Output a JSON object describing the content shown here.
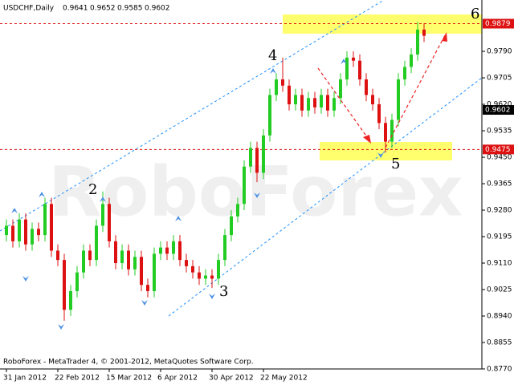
{
  "chart_data": {
    "type": "candlestick",
    "title": "USDCHF,Daily",
    "header_values": [
      0.9641,
      0.9652,
      0.9585,
      0.9602
    ],
    "footer": "RoboForex - MetaTrader 4, © 2001-2012, MetaQuotes Software Corp.",
    "watermark": "RoboForex",
    "annotations": [
      "2",
      "3",
      "4",
      "5",
      "6"
    ],
    "up_color": "#22cc22",
    "down_color": "#dd1111",
    "categories": [
      "31 Jan 2012",
      null,
      null,
      null,
      null,
      null,
      null,
      null,
      "22 Feb 2012",
      null,
      null,
      null,
      null,
      null,
      null,
      null,
      "15 Mar 2012",
      null,
      null,
      null,
      null,
      null,
      null,
      null,
      "6 Apr 2012",
      null,
      null,
      null,
      null,
      null,
      null,
      null,
      "30 Apr 2012",
      null,
      null,
      null,
      null,
      null,
      null,
      null,
      "22 May 2012",
      null,
      null,
      null,
      null,
      null,
      null,
      null,
      null,
      null,
      null,
      null,
      null,
      null,
      null,
      null,
      null,
      null,
      null,
      null,
      null,
      null,
      null,
      null,
      null,
      null
    ],
    "open": [
      0.92,
      0.923,
      0.918,
      0.925,
      0.917,
      0.922,
      0.92,
      0.93,
      0.915,
      0.912,
      0.896,
      0.902,
      0.908,
      0.915,
      0.912,
      0.923,
      0.93,
      0.918,
      0.911,
      0.915,
      0.909,
      0.913,
      0.904,
      0.902,
      0.914,
      0.916,
      0.914,
      0.918,
      0.912,
      0.91,
      0.908,
      0.906,
      0.907,
      0.906,
      0.912,
      0.92,
      0.926,
      0.93,
      0.942,
      0.948,
      0.94,
      0.952,
      0.965,
      0.97,
      0.968,
      0.962,
      0.965,
      0.96,
      0.964,
      0.961,
      0.965,
      0.96,
      0.964,
      0.97,
      0.977,
      0.976,
      0.97,
      0.965,
      0.962,
      0.956,
      0.95,
      0.957,
      0.97,
      0.974,
      0.978,
      0.986
    ],
    "high": [
      0.925,
      0.925,
      0.927,
      0.927,
      0.924,
      0.924,
      0.932,
      0.932,
      0.917,
      0.914,
      0.904,
      0.91,
      0.917,
      0.917,
      0.925,
      0.934,
      0.932,
      0.92,
      0.917,
      0.917,
      0.915,
      0.915,
      0.906,
      0.916,
      0.918,
      0.918,
      0.92,
      0.92,
      0.914,
      0.912,
      0.91,
      0.909,
      0.909,
      0.914,
      0.922,
      0.928,
      0.932,
      0.944,
      0.95,
      0.95,
      0.954,
      0.967,
      0.972,
      0.977,
      0.97,
      0.967,
      0.967,
      0.966,
      0.966,
      0.967,
      0.967,
      0.966,
      0.972,
      0.979,
      0.979,
      0.978,
      0.972,
      0.967,
      0.964,
      0.958,
      0.959,
      0.972,
      0.976,
      0.98,
      0.9885,
      0.988
    ],
    "low": [
      0.918,
      0.916,
      0.916,
      0.915,
      0.915,
      0.918,
      0.918,
      0.913,
      0.91,
      0.8925,
      0.894,
      0.9,
      0.906,
      0.91,
      0.91,
      0.921,
      0.916,
      0.909,
      0.909,
      0.907,
      0.907,
      0.902,
      0.9,
      0.9,
      0.912,
      0.912,
      0.912,
      0.91,
      0.908,
      0.906,
      0.904,
      0.904,
      0.903,
      0.904,
      0.91,
      0.918,
      0.924,
      0.928,
      0.94,
      0.937,
      0.938,
      0.95,
      0.963,
      0.966,
      0.96,
      0.96,
      0.958,
      0.958,
      0.959,
      0.959,
      0.958,
      0.958,
      0.962,
      0.968,
      0.974,
      0.968,
      0.963,
      0.96,
      0.954,
      0.9465,
      0.948,
      0.955,
      0.968,
      0.972,
      0.976,
      0.982
    ],
    "close": [
      0.923,
      0.918,
      0.925,
      0.917,
      0.922,
      0.92,
      0.93,
      0.915,
      0.912,
      0.896,
      0.902,
      0.908,
      0.915,
      0.912,
      0.923,
      0.93,
      0.918,
      0.911,
      0.915,
      0.909,
      0.913,
      0.904,
      0.902,
      0.914,
      0.916,
      0.914,
      0.918,
      0.912,
      0.91,
      0.908,
      0.906,
      0.907,
      0.906,
      0.912,
      0.92,
      0.926,
      0.93,
      0.942,
      0.948,
      0.94,
      0.952,
      0.965,
      0.97,
      0.968,
      0.962,
      0.965,
      0.96,
      0.964,
      0.961,
      0.965,
      0.96,
      0.964,
      0.97,
      0.977,
      0.976,
      0.97,
      0.965,
      0.962,
      0.956,
      0.95,
      0.957,
      0.97,
      0.974,
      0.978,
      0.986,
      0.984
    ],
    "ylim": [
      0.877,
      0.9955
    ],
    "yticks": [
      {
        "value": 0.979,
        "label": "0.9790"
      },
      0.9705,
      {
        "value": 0.962,
        "label": "0.9620"
      },
      0.9535,
      {
        "value": 0.945,
        "label": "0.9450"
      },
      0.9365,
      {
        "value": 0.928,
        "label": "0.9280"
      },
      0.9195,
      {
        "value": 0.911,
        "label": "0.9110"
      },
      0.9025,
      {
        "value": 0.894,
        "label": "0.8940"
      },
      0.8855,
      {
        "value": 0.877,
        "label": "0.8770"
      }
    ],
    "levels": [
      {
        "value": 0.9879,
        "label": "0.9879"
      },
      {
        "value": 0.9475,
        "label": "0.9475"
      }
    ],
    "current_price": {
      "value": 0.9602,
      "label": "0.9602"
    }
  }
}
